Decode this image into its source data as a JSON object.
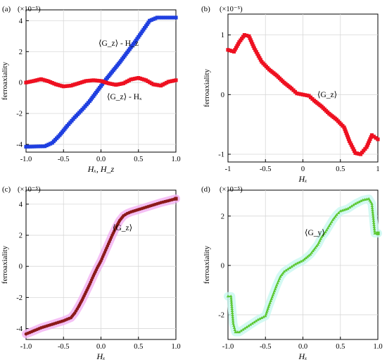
{
  "colors": {
    "blue": "#1f3fe0",
    "red": "#ee1020",
    "pink": "#f2b0f2",
    "brown": "#8b1a1a",
    "green": "#5cc832",
    "cyan": "#c8f8f0"
  },
  "chart_data": [
    {
      "panel": "(a)",
      "type": "line",
      "multiplier": "(×10⁻⁵)",
      "xlabel": "Hₓ, H_z",
      "ylabel": "ferroaxiality",
      "xlim": [
        -1.0,
        1.0
      ],
      "ylim": [
        -4.5,
        4.7
      ],
      "xticks": [
        "-1.0",
        "-0.5",
        "0.0",
        "0.5",
        "1.0"
      ],
      "yticks": [
        "-4",
        "-2",
        "0",
        "2",
        "4"
      ],
      "grid": true,
      "annotations": [
        "⟨G_z⟩ - H_z",
        "⟨G_z⟩ - Hₓ"
      ],
      "series": [
        {
          "color": "#1f3fe0",
          "x": [
            -1.0,
            -0.75,
            -0.65,
            -0.55,
            -0.45,
            -0.35,
            -0.25,
            -0.15,
            -0.05,
            0.05,
            0.15,
            0.25,
            0.35,
            0.45,
            0.55,
            0.65,
            0.75,
            1.0
          ],
          "y": [
            -4.15,
            -4.12,
            -3.9,
            -3.4,
            -2.8,
            -2.25,
            -1.75,
            -1.2,
            -0.55,
            0.1,
            0.7,
            1.3,
            1.95,
            2.6,
            3.3,
            4.0,
            4.2,
            4.2
          ]
        },
        {
          "color": "#ee1020",
          "x": [
            -1.0,
            -0.9,
            -0.8,
            -0.7,
            -0.6,
            -0.5,
            -0.4,
            -0.3,
            -0.2,
            -0.1,
            0.0,
            0.1,
            0.2,
            0.3,
            0.4,
            0.5,
            0.6,
            0.7,
            0.8,
            0.9,
            1.0
          ],
          "y": [
            0.0,
            0.1,
            0.22,
            0.08,
            -0.12,
            -0.25,
            -0.2,
            -0.05,
            0.1,
            0.15,
            0.1,
            -0.05,
            -0.15,
            -0.05,
            0.2,
            0.3,
            0.15,
            -0.12,
            -0.2,
            0.05,
            0.15
          ]
        }
      ]
    },
    {
      "panel": "(b)",
      "type": "line",
      "multiplier": "(×10⁻⁵)",
      "xlabel": "Hₓ",
      "ylabel": "ferroaxiality",
      "xlim": [
        -1.0,
        1.0
      ],
      "ylim": [
        -1.13,
        1.35
      ],
      "xticks": [
        "-1",
        "-0.5",
        "0",
        "0.5",
        "1"
      ],
      "yticks": [
        "-1",
        "0",
        "1"
      ],
      "grid": true,
      "annotations": [
        "⟨G_z⟩"
      ],
      "series": [
        {
          "color": "#ee1020",
          "x": [
            -1.0,
            -0.92,
            -0.85,
            -0.78,
            -0.72,
            -0.65,
            -0.55,
            -0.45,
            -0.35,
            -0.25,
            -0.15,
            -0.08,
            0.0,
            0.08,
            0.15,
            0.25,
            0.35,
            0.45,
            0.55,
            0.62,
            0.7,
            0.77,
            0.85,
            0.92,
            1.0
          ],
          "y": [
            0.75,
            0.72,
            0.88,
            1.0,
            0.98,
            0.78,
            0.55,
            0.42,
            0.32,
            0.2,
            0.1,
            0.02,
            0.0,
            -0.02,
            -0.1,
            -0.2,
            -0.32,
            -0.42,
            -0.55,
            -0.78,
            -0.98,
            -1.0,
            -0.88,
            -0.68,
            -0.75
          ]
        }
      ]
    },
    {
      "panel": "(c)",
      "type": "line",
      "multiplier": "(×10⁻⁵)",
      "xlabel": "Hₓ",
      "ylabel": "ferroaxiality",
      "xlim": [
        -1.0,
        1.0
      ],
      "ylim": [
        -4.7,
        4.9
      ],
      "xticks": [
        "-1.0",
        "-0.5",
        "0.0",
        "0.5",
        "1.0"
      ],
      "yticks": [
        "-4",
        "-2",
        "0",
        "2",
        "4"
      ],
      "grid": true,
      "annotations": [
        "⟨G_z⟩"
      ],
      "series": [
        {
          "color": "#8b1a1a",
          "x": [
            -1.0,
            -0.9,
            -0.8,
            -0.7,
            -0.6,
            -0.5,
            -0.4,
            -0.35,
            -0.3,
            -0.25,
            -0.2,
            -0.15,
            -0.1,
            -0.05,
            0.0,
            0.05,
            0.1,
            0.15,
            0.2,
            0.25,
            0.3,
            0.35,
            0.4,
            0.5,
            0.6,
            0.7,
            0.8,
            0.9,
            1.0
          ],
          "y": [
            -4.35,
            -4.15,
            -3.95,
            -3.8,
            -3.65,
            -3.5,
            -3.3,
            -3.0,
            -2.6,
            -2.15,
            -1.65,
            -1.15,
            -0.6,
            -0.1,
            0.35,
            0.9,
            1.45,
            2.0,
            2.5,
            2.95,
            3.25,
            3.4,
            3.5,
            3.65,
            3.8,
            3.95,
            4.1,
            4.22,
            4.35
          ]
        }
      ]
    },
    {
      "panel": "(d)",
      "type": "line",
      "multiplier": "(×10⁻⁵)",
      "xlabel": "Hₓ",
      "ylabel": "ferroaxiality",
      "xlim": [
        -1.0,
        1.0
      ],
      "ylim": [
        -3.0,
        3.05
      ],
      "xticks": [
        "-1.0",
        "-0.5",
        "0.0",
        "0.5",
        "1.0"
      ],
      "yticks": [
        "-2",
        "0",
        "2"
      ],
      "grid": true,
      "annotations": [
        "⟨G_y⟩"
      ],
      "series": [
        {
          "color": "#5cc832",
          "x": [
            -1.0,
            -0.96,
            -0.93,
            -0.9,
            -0.85,
            -0.8,
            -0.7,
            -0.6,
            -0.5,
            -0.45,
            -0.4,
            -0.35,
            -0.3,
            -0.25,
            -0.2,
            -0.1,
            0.0,
            0.1,
            0.2,
            0.25,
            0.3,
            0.35,
            0.4,
            0.45,
            0.5,
            0.6,
            0.7,
            0.8,
            0.88,
            0.92,
            0.96,
            1.0
          ],
          "y": [
            -1.25,
            -1.25,
            -2.35,
            -2.7,
            -2.7,
            -2.6,
            -2.4,
            -2.2,
            -2.05,
            -1.6,
            -1.2,
            -0.8,
            -0.45,
            -0.25,
            -0.15,
            0.05,
            0.2,
            0.45,
            0.85,
            1.15,
            1.35,
            1.6,
            1.85,
            2.05,
            2.2,
            2.3,
            2.5,
            2.65,
            2.7,
            2.5,
            1.3,
            1.3
          ]
        }
      ]
    }
  ]
}
